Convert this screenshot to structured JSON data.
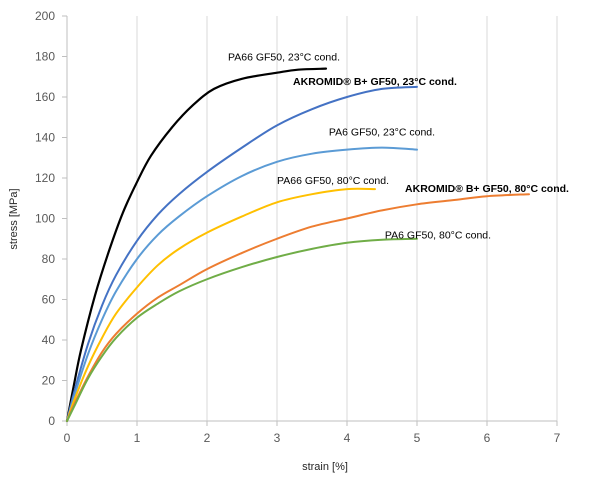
{
  "chart_data": {
    "type": "line",
    "title": "",
    "xlabel": "strain [%]",
    "ylabel": "stress [MPa]",
    "xlim": [
      0,
      7
    ],
    "ylim": [
      0,
      200
    ],
    "xticks": [
      0,
      1,
      2,
      3,
      4,
      5,
      6,
      7
    ],
    "yticks": [
      0,
      20,
      40,
      60,
      80,
      100,
      120,
      140,
      160,
      180,
      200
    ],
    "grid": "vertical",
    "legend": "none (series labelled directly on the plot)",
    "series": [
      {
        "name": "PA66 GF50, 23°C cond.",
        "color": "#000000",
        "label_bold": false,
        "points": [
          [
            0,
            0
          ],
          [
            0.1,
            18
          ],
          [
            0.2,
            35
          ],
          [
            0.4,
            62
          ],
          [
            0.6,
            84
          ],
          [
            0.8,
            103
          ],
          [
            1.0,
            118
          ],
          [
            1.2,
            131
          ],
          [
            1.5,
            145
          ],
          [
            1.8,
            156
          ],
          [
            2.1,
            164
          ],
          [
            2.5,
            169
          ],
          [
            3.0,
            172
          ],
          [
            3.3,
            173.5
          ],
          [
            3.7,
            174
          ]
        ]
      },
      {
        "name": "AKROMID® B+ GF50, 23°C cond.",
        "color": "#4472C4",
        "label_bold": true,
        "points": [
          [
            0,
            0
          ],
          [
            0.1,
            14
          ],
          [
            0.3,
            38
          ],
          [
            0.5,
            57
          ],
          [
            0.7,
            72
          ],
          [
            1.0,
            89
          ],
          [
            1.3,
            102
          ],
          [
            1.6,
            112
          ],
          [
            2.0,
            123
          ],
          [
            2.5,
            135
          ],
          [
            3.0,
            146
          ],
          [
            3.5,
            154
          ],
          [
            4.0,
            160
          ],
          [
            4.5,
            164
          ],
          [
            5.0,
            165
          ]
        ]
      },
      {
        "name": "PA6 GF50, 23°C cond.",
        "color": "#5B9BD5",
        "label_bold": false,
        "points": [
          [
            0,
            0
          ],
          [
            0.1,
            12
          ],
          [
            0.3,
            33
          ],
          [
            0.5,
            50
          ],
          [
            0.7,
            64
          ],
          [
            1.0,
            80
          ],
          [
            1.3,
            92
          ],
          [
            1.6,
            101
          ],
          [
            2.0,
            111
          ],
          [
            2.5,
            121
          ],
          [
            3.0,
            128
          ],
          [
            3.5,
            132
          ],
          [
            4.0,
            134
          ],
          [
            4.5,
            135
          ],
          [
            5.0,
            134
          ]
        ]
      },
      {
        "name": "PA66 GF50, 80°C cond.",
        "color": "#FFC000",
        "label_bold": false,
        "points": [
          [
            0,
            0
          ],
          [
            0.1,
            10
          ],
          [
            0.3,
            27
          ],
          [
            0.5,
            41
          ],
          [
            0.7,
            53
          ],
          [
            1.0,
            66
          ],
          [
            1.3,
            77
          ],
          [
            1.6,
            85
          ],
          [
            2.0,
            93
          ],
          [
            2.5,
            101
          ],
          [
            3.0,
            108
          ],
          [
            3.5,
            112
          ],
          [
            4.0,
            114.5
          ],
          [
            4.4,
            114.5
          ]
        ]
      },
      {
        "name": "AKROMID® B+ GF50, 80°C cond.",
        "color": "#ED7D31",
        "label_bold": true,
        "points": [
          [
            0,
            0
          ],
          [
            0.1,
            8
          ],
          [
            0.3,
            22
          ],
          [
            0.5,
            34
          ],
          [
            0.7,
            43
          ],
          [
            1.0,
            53
          ],
          [
            1.3,
            61
          ],
          [
            1.6,
            67
          ],
          [
            2.0,
            75
          ],
          [
            2.5,
            83
          ],
          [
            3.0,
            90
          ],
          [
            3.5,
            96
          ],
          [
            4.0,
            100
          ],
          [
            4.5,
            104
          ],
          [
            5.0,
            107
          ],
          [
            5.5,
            109
          ],
          [
            6.0,
            111
          ],
          [
            6.6,
            112
          ]
        ]
      },
      {
        "name": "PA6 GF50, 80°C cond.",
        "color": "#70AD47",
        "label_bold": false,
        "points": [
          [
            0,
            0
          ],
          [
            0.1,
            7
          ],
          [
            0.3,
            21
          ],
          [
            0.5,
            32
          ],
          [
            0.7,
            41
          ],
          [
            1.0,
            51
          ],
          [
            1.3,
            58
          ],
          [
            1.6,
            64
          ],
          [
            2.0,
            70
          ],
          [
            2.5,
            76
          ],
          [
            3.0,
            81
          ],
          [
            3.5,
            85
          ],
          [
            4.0,
            88
          ],
          [
            4.5,
            89.5
          ],
          [
            5.0,
            90
          ]
        ]
      }
    ],
    "annotations": [
      {
        "series": 0,
        "x": 3.1,
        "y": 180
      },
      {
        "series": 1,
        "x": 4.4,
        "y": 168
      },
      {
        "series": 2,
        "x": 4.5,
        "y": 143
      },
      {
        "series": 3,
        "x": 3.8,
        "y": 119
      },
      {
        "series": 4,
        "x": 6.0,
        "y": 115
      },
      {
        "series": 5,
        "x": 5.3,
        "y": 92
      }
    ]
  }
}
